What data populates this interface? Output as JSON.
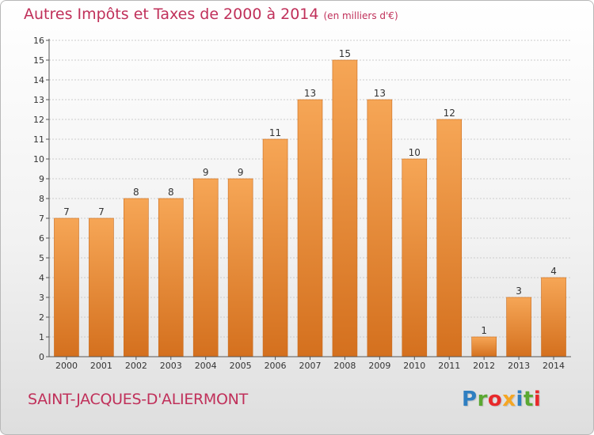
{
  "title": {
    "main": "Autres Impôts et Taxes de 2000 à 2014",
    "unit": "(en milliers d'€)"
  },
  "commune": "SAINT-JACQUES-D'ALIERMONT",
  "logo": {
    "text": "Proxiti",
    "colors": [
      "#2f7fc1",
      "#5aa832",
      "#e8292b",
      "#f5a623",
      "#2f7fc1",
      "#5aa832",
      "#e8292b"
    ]
  },
  "colors": {
    "bar_top": "#f6a656",
    "bar_bottom": "#d4701e",
    "accent": "#c0305a",
    "grid": "#cccccc"
  },
  "chart_data": {
    "type": "bar",
    "categories": [
      "2000",
      "2001",
      "2002",
      "2003",
      "2004",
      "2005",
      "2006",
      "2007",
      "2008",
      "2009",
      "2010",
      "2011",
      "2012",
      "2013",
      "2014"
    ],
    "values": [
      7,
      7,
      8,
      8,
      9,
      9,
      11,
      13,
      15,
      13,
      10,
      12,
      1,
      3,
      4
    ],
    "ylim": [
      0,
      16
    ],
    "yticks": [
      0,
      1,
      2,
      3,
      4,
      5,
      6,
      7,
      8,
      9,
      10,
      11,
      12,
      13,
      14,
      15,
      16
    ],
    "grid": true,
    "data_labels": true
  }
}
